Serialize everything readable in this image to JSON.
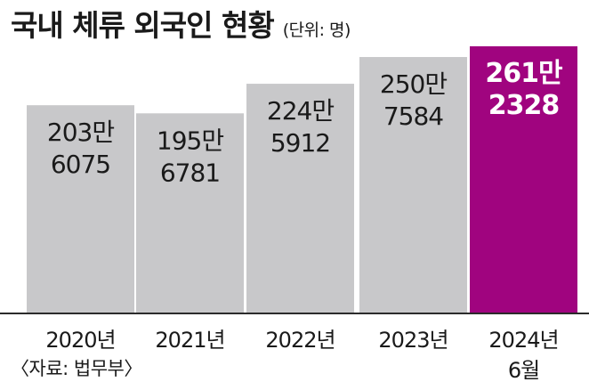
{
  "header": {
    "title": "국내 체류 외국인 현황",
    "unit": "(단위: 명)"
  },
  "source": "〈자료: 법무부〉",
  "colors": {
    "bar_default": "#c8c8ca",
    "bar_highlight": "#a0047f",
    "label_default": "#1a1a1a",
    "label_highlight": "#ffffff",
    "axis": "#2b2b2b"
  },
  "chart_data": {
    "type": "bar",
    "title": "국내 체류 외국인 현황",
    "unit": "명",
    "categories": [
      "2020년",
      "2021년",
      "2022년",
      "2023년",
      "2024년 6월"
    ],
    "category_lines": [
      [
        "2020년"
      ],
      [
        "2021년"
      ],
      [
        "2022년"
      ],
      [
        "2023년"
      ],
      [
        "2024년",
        "6월"
      ]
    ],
    "values": [
      2036075,
      1956781,
      2245912,
      2507584,
      2612328
    ],
    "value_labels": [
      [
        "203만",
        "6075"
      ],
      [
        "195만",
        "6781"
      ],
      [
        "224만",
        "5912"
      ],
      [
        "250만",
        "7584"
      ],
      [
        "261만",
        "2328"
      ]
    ],
    "highlight_index": 4,
    "ylim": [
      0,
      2612328
    ],
    "grid": false,
    "legend": "none"
  }
}
